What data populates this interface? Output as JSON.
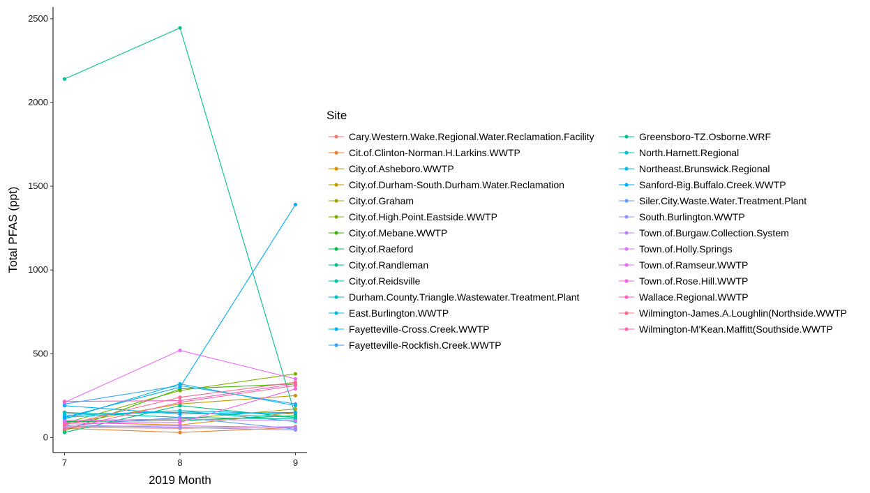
{
  "chart_data": {
    "type": "line",
    "title": "",
    "xlabel": "2019 Month",
    "ylabel": "Total PFAS (ppt)",
    "x": [
      7,
      8,
      9
    ],
    "xlim": [
      6.9,
      9.1
    ],
    "ylim": [
      -90,
      2570
    ],
    "yticks": [
      0,
      500,
      1000,
      1500,
      2000,
      2500
    ],
    "grid": false,
    "legend_title": "Site",
    "legend_position": "right",
    "series": [
      {
        "name": "Cary.Western.Wake.Regional.Water.Reclamation.Facility",
        "color": "#F8766D",
        "values": [
          60,
          55,
          65
        ]
      },
      {
        "name": "Cit.of.Clinton-Norman.H.Larkins.WWTP",
        "color": "#EA8331",
        "values": [
          55,
          30,
          60
        ]
      },
      {
        "name": "City.of.Asheboro.WWTP",
        "color": "#D89000",
        "values": [
          90,
          75,
          150
        ]
      },
      {
        "name": "City.of.Durham-South.Durham.Water.Reclamation",
        "color": "#C09B00",
        "values": [
          80,
          200,
          250
        ]
      },
      {
        "name": "City.of.Graham",
        "color": "#A3A500",
        "values": [
          100,
          110,
          170
        ]
      },
      {
        "name": "City.of.High.Point.Eastside.WWTP",
        "color": "#7CAE00",
        "values": [
          85,
          280,
          380
        ]
      },
      {
        "name": "City.of.Mebane.WWTP",
        "color": "#39B600",
        "values": [
          40,
          290,
          320
        ]
      },
      {
        "name": "City.of.Raeford",
        "color": "#00BB4E",
        "values": [
          95,
          100,
          130
        ]
      },
      {
        "name": "City.of.Randleman",
        "color": "#00BF7D",
        "values": [
          30,
          190,
          120
        ]
      },
      {
        "name": "City.of.Reidsville",
        "color": "#00C1A3",
        "values": [
          150,
          120,
          110
        ]
      },
      {
        "name": "Durham.County.Triangle.Wastewater.Treatment.Plant",
        "color": "#00BFC4",
        "values": [
          140,
          150,
          120
        ]
      },
      {
        "name": "East.Burlington.WWTP",
        "color": "#00BAE0",
        "values": [
          130,
          160,
          140
        ]
      },
      {
        "name": "Fayetteville-Cross.Creek.WWTP",
        "color": "#00B0F6",
        "values": [
          190,
          140,
          150
        ]
      },
      {
        "name": "Fayetteville-Rockfish.Creek.WWTP",
        "color": "#35A2FF",
        "values": [
          200,
          310,
          200
        ]
      },
      {
        "name": "Greensboro-TZ.Osborne.WRF",
        "color": "#00C08B",
        "values": [
          2140,
          2445,
          130
        ]
      },
      {
        "name": "North.Harnett.Regional",
        "color": "#00BDD0",
        "values": [
          120,
          160,
          95
        ]
      },
      {
        "name": "Northeast.Brunswick.Regional",
        "color": "#00B8E7",
        "values": [
          110,
          320,
          190
        ]
      },
      {
        "name": "Sanford-Big.Buffalo.Creek.WWTP",
        "color": "#00A9FF",
        "values": [
          120,
          300,
          1390
        ]
      },
      {
        "name": "Siler.City.Waste.Water.Treatment.Plant",
        "color": "#619CFF",
        "values": [
          70,
          120,
          50
        ]
      },
      {
        "name": "South.Burlington.WWTP",
        "color": "#9590FF",
        "values": [
          75,
          60,
          45
        ]
      },
      {
        "name": "Town.of.Burgaw.Collection.System",
        "color": "#B983FF",
        "values": [
          65,
          70,
          60
        ]
      },
      {
        "name": "Town.of.Holly.Springs",
        "color": "#D575FE",
        "values": [
          100,
          110,
          100
        ]
      },
      {
        "name": "Town.of.Ramseur.WWTP",
        "color": "#E76BF3",
        "values": [
          210,
          520,
          350
        ]
      },
      {
        "name": "Town.of.Rose.Hill.WWTP",
        "color": "#F564E3",
        "values": [
          85,
          90,
          290
        ]
      },
      {
        "name": "Wallace.Regional.WWTP",
        "color": "#FF62BC",
        "values": [
          215,
          220,
          320
        ]
      },
      {
        "name": "Wilmington-James.A.Loughlin(Northside.WWTP",
        "color": "#FF6C91",
        "values": [
          75,
          240,
          330
        ]
      },
      {
        "name": "Wilmington-M'Kean.Maffitt(Southside.WWTP",
        "color": "#FF67A4",
        "values": [
          50,
          210,
          310
        ]
      }
    ]
  }
}
